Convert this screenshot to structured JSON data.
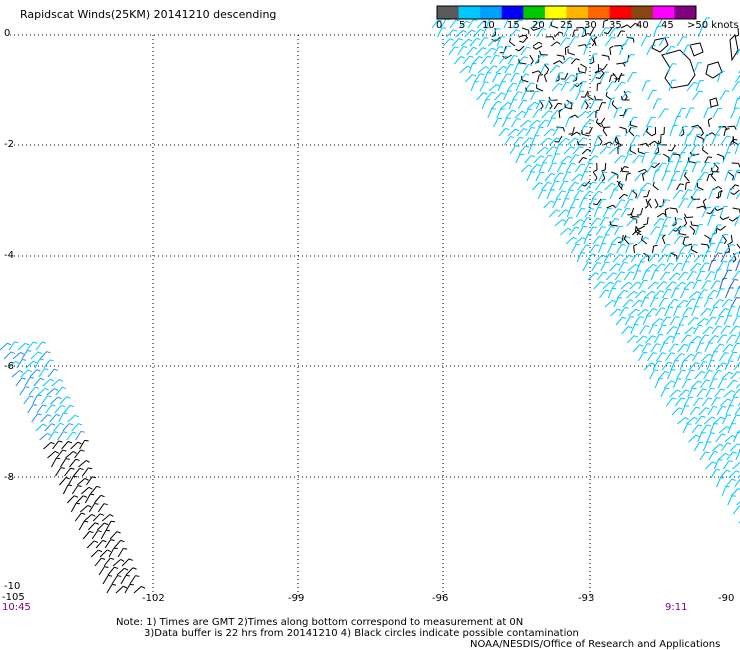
{
  "title": "Rapidscat Winds(25KM) 20141210 descending",
  "legend": {
    "colors": [
      "#5a5a5a",
      "#00c8ff",
      "#00a0ff",
      "#0000ff",
      "#00c800",
      "#ffff00",
      "#ffb400",
      "#ff6400",
      "#ff0000",
      "#8b4513",
      "#ff00ff",
      "#800080"
    ],
    "labels": [
      "0",
      "5",
      "10",
      "15",
      "20",
      "25",
      "30",
      "35",
      "40",
      "45",
      ">50 knots"
    ]
  },
  "latitude_labels": [
    "0",
    "-2",
    "-4",
    "-6",
    "-8",
    "-10"
  ],
  "longitude_labels": [
    "-105",
    "-102",
    "-99",
    "-96",
    "-93",
    "-90"
  ],
  "time_left": "10:45",
  "time_right": "9:11",
  "notes": {
    "line1": "Note: 1) Times are GMT 2)Times along bottom correspond to measurement at 0N",
    "line2": "3)Data buffer is 22 hrs from 20141210 4) Black circles indicate possible contamination",
    "line3": "NOAA/NESDIS/Office of Research and Applications"
  },
  "wind_colors": {
    "calm": "#000000",
    "light": "#00c8ff",
    "medium": "#1e90ff",
    "strong": "#2060d0"
  }
}
